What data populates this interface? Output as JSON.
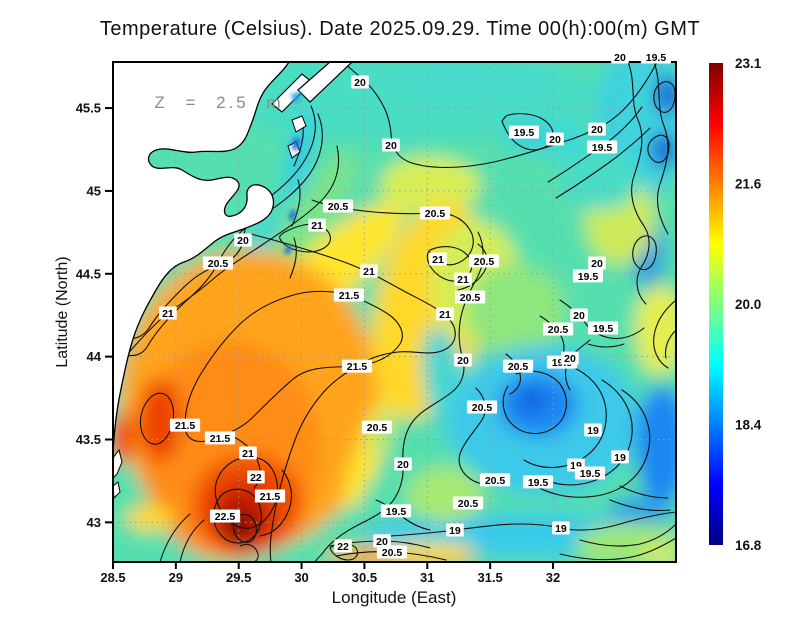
{
  "chart_data": {
    "type": "heatmap",
    "title": "Temperature (Celsius). Date 2025.09.29. Time 00(h):00(m) GMT",
    "xlabel": "Longitude (East)",
    "ylabel": "Latitude (North)",
    "depth_annotation": "Z = 2.5 m",
    "units": "degrees Celsius",
    "xlim": [
      28.5,
      32.98
    ],
    "ylim": [
      42.76,
      45.78
    ],
    "x_ticks": [
      "28.5",
      "29",
      "29.5",
      "30",
      "30.5",
      "31",
      "31.5",
      "32"
    ],
    "y_ticks": [
      "45.5",
      "45",
      "44.5",
      "44",
      "43.5",
      "43"
    ],
    "grid": "dotted, every 0.5 degree",
    "contour_interval": 0.5,
    "land_color": "#ffffff",
    "colorbar": {
      "min": 16.8,
      "max": 23.1,
      "tick_labels": [
        "23.1",
        "21.6",
        "20.0",
        "18.4",
        "16.8"
      ],
      "colormap": "jet",
      "gradient_stops": [
        {
          "pos": 0.0,
          "color": "#7f0000"
        },
        {
          "pos": 0.125,
          "color": "#ff0000"
        },
        {
          "pos": 0.375,
          "color": "#ffff00"
        },
        {
          "pos": 0.625,
          "color": "#00ffff"
        },
        {
          "pos": 0.875,
          "color": "#0000ff"
        },
        {
          "pos": 1.0,
          "color": "#00007f"
        }
      ]
    },
    "contour_labels": [
      {
        "v": "20",
        "lon": 30.465,
        "lat": 45.657
      },
      {
        "v": "20",
        "lon": 30.711,
        "lat": 45.277
      },
      {
        "v": "19.5",
        "lon": 31.769,
        "lat": 45.355
      },
      {
        "v": "20",
        "lon": 32.016,
        "lat": 45.313
      },
      {
        "v": "20",
        "lon": 32.533,
        "lat": 45.808
      },
      {
        "v": "19.5",
        "lon": 32.819,
        "lat": 45.808
      },
      {
        "v": "20",
        "lon": 32.35,
        "lat": 45.373
      },
      {
        "v": "19.5",
        "lon": 32.39,
        "lat": 45.265
      },
      {
        "v": "20.5",
        "lon": 30.29,
        "lat": 44.909
      },
      {
        "v": "21",
        "lon": 30.123,
        "lat": 44.794
      },
      {
        "v": "20",
        "lon": 29.534,
        "lat": 44.704
      },
      {
        "v": "20.5",
        "lon": 29.335,
        "lat": 44.565
      },
      {
        "v": "21",
        "lon": 28.937,
        "lat": 44.263
      },
      {
        "v": "20.5",
        "lon": 31.061,
        "lat": 44.867
      },
      {
        "v": "21",
        "lon": 31.085,
        "lat": 44.589
      },
      {
        "v": "20.5",
        "lon": 31.451,
        "lat": 44.577
      },
      {
        "v": "21",
        "lon": 31.284,
        "lat": 44.468
      },
      {
        "v": "21",
        "lon": 30.536,
        "lat": 44.517
      },
      {
        "v": "21.5",
        "lon": 30.377,
        "lat": 44.372
      },
      {
        "v": "20.5",
        "lon": 31.34,
        "lat": 44.36
      },
      {
        "v": "21",
        "lon": 31.141,
        "lat": 44.257
      },
      {
        "v": "20",
        "lon": 32.35,
        "lat": 44.565
      },
      {
        "v": "19.5",
        "lon": 32.278,
        "lat": 44.487
      },
      {
        "v": "20",
        "lon": 32.207,
        "lat": 44.251
      },
      {
        "v": "19.5",
        "lon": 32.398,
        "lat": 44.173
      },
      {
        "v": "20.5",
        "lon": 32.04,
        "lat": 44.167
      },
      {
        "v": "20.5",
        "lon": 31.722,
        "lat": 43.943
      },
      {
        "v": "20",
        "lon": 31.284,
        "lat": 43.98
      },
      {
        "v": "21.5",
        "lon": 30.441,
        "lat": 43.943
      },
      {
        "v": "19.5",
        "lon": 32.071,
        "lat": 43.967
      },
      {
        "v": "20",
        "lon": 32.135,
        "lat": 43.991
      },
      {
        "v": "20.5",
        "lon": 31.435,
        "lat": 43.696
      },
      {
        "v": "20.5",
        "lon": 30.6,
        "lat": 43.575
      },
      {
        "v": "19",
        "lon": 32.318,
        "lat": 43.557
      },
      {
        "v": "19",
        "lon": 32.533,
        "lat": 43.395
      },
      {
        "v": "19",
        "lon": 32.183,
        "lat": 43.346
      },
      {
        "v": "19.5",
        "lon": 32.294,
        "lat": 43.298
      },
      {
        "v": "20",
        "lon": 30.807,
        "lat": 43.352
      },
      {
        "v": "20.5",
        "lon": 31.539,
        "lat": 43.256
      },
      {
        "v": "19.5",
        "lon": 31.881,
        "lat": 43.244
      },
      {
        "v": "20.5",
        "lon": 31.324,
        "lat": 43.117
      },
      {
        "v": "19",
        "lon": 31.22,
        "lat": 42.954
      },
      {
        "v": "19",
        "lon": 32.063,
        "lat": 42.966
      },
      {
        "v": "19.5",
        "lon": 30.751,
        "lat": 43.069
      },
      {
        "v": "20",
        "lon": 30.64,
        "lat": 42.888
      },
      {
        "v": "20.5",
        "lon": 30.719,
        "lat": 42.821
      },
      {
        "v": "22",
        "lon": 30.33,
        "lat": 42.858
      },
      {
        "v": "21.5",
        "lon": 29.073,
        "lat": 43.587
      },
      {
        "v": "21.5",
        "lon": 29.351,
        "lat": 43.51
      },
      {
        "v": "21",
        "lon": 29.574,
        "lat": 43.419
      },
      {
        "v": "22",
        "lon": 29.637,
        "lat": 43.274
      },
      {
        "v": "21.5",
        "lon": 29.749,
        "lat": 43.159
      },
      {
        "v": "22.5",
        "lon": 29.391,
        "lat": 43.038
      }
    ],
    "features": [
      "warm core ~22.5 C near 29.3E 43.0N",
      "cold coastal upwelling band ~19-20 C along NW coast",
      "cool eddy ~19 C near 31.8E 43.5N",
      "land mask (white) in north-west corner"
    ]
  }
}
